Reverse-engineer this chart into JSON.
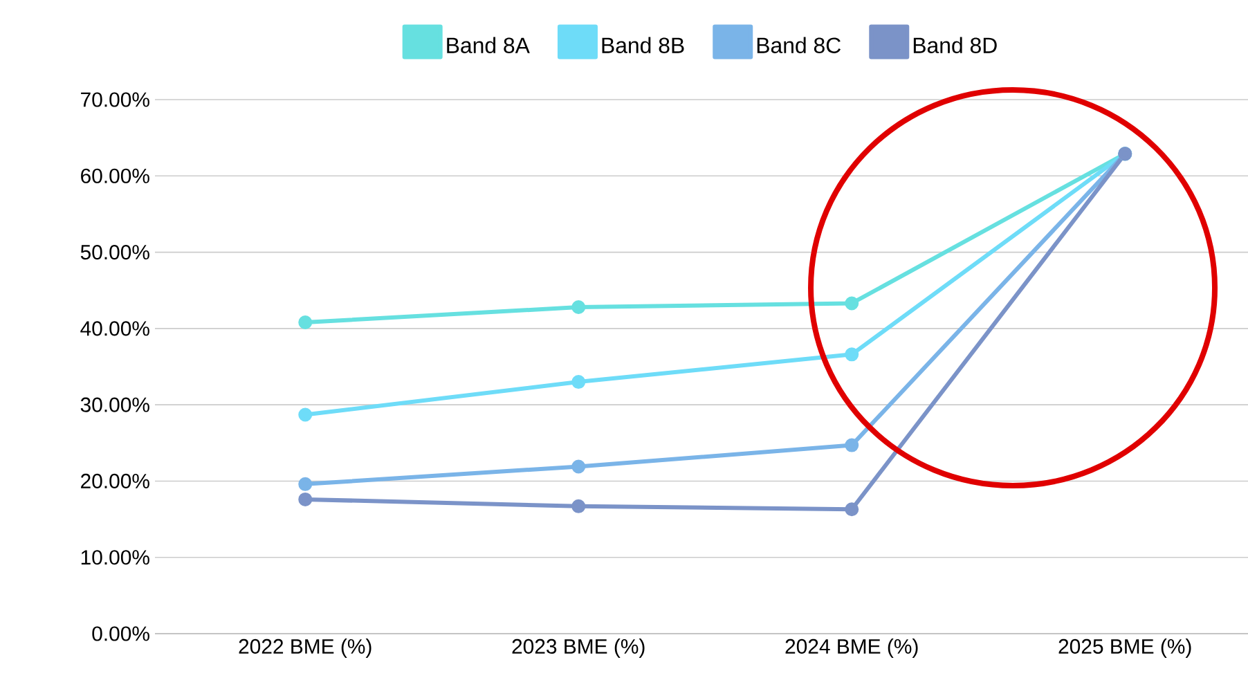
{
  "chart_data": {
    "type": "line",
    "categories": [
      "2022 BME (%)",
      "2023 BME (%)",
      "2024 BME (%)",
      "2025 BME (%)"
    ],
    "series": [
      {
        "name": "Band 8A",
        "color": "#66e0e0",
        "values": [
          40.8,
          42.8,
          43.3,
          62.9
        ]
      },
      {
        "name": "Band 8B",
        "color": "#6edcf8",
        "values": [
          28.7,
          33.0,
          36.6,
          62.9
        ]
      },
      {
        "name": "Band 8C",
        "color": "#7ab4e8",
        "values": [
          19.6,
          21.9,
          24.7,
          62.9
        ]
      },
      {
        "name": "Band 8D",
        "color": "#7b93c8",
        "values": [
          17.6,
          16.7,
          16.3,
          62.9
        ]
      }
    ],
    "ylim": [
      0,
      70
    ],
    "yticks": [
      {
        "value": 0,
        "label": "0.00%"
      },
      {
        "value": 10,
        "label": "10.00%"
      },
      {
        "value": 20,
        "label": "20.00%"
      },
      {
        "value": 30,
        "label": "30.00%"
      },
      {
        "value": 40,
        "label": "40.00%"
      },
      {
        "value": 50,
        "label": "50.00%"
      },
      {
        "value": 60,
        "label": "60.00%"
      },
      {
        "value": 70,
        "label": "70.00%"
      }
    ],
    "grid": "y",
    "legend": "top",
    "marker": "circle",
    "line_style": "solid"
  }
}
